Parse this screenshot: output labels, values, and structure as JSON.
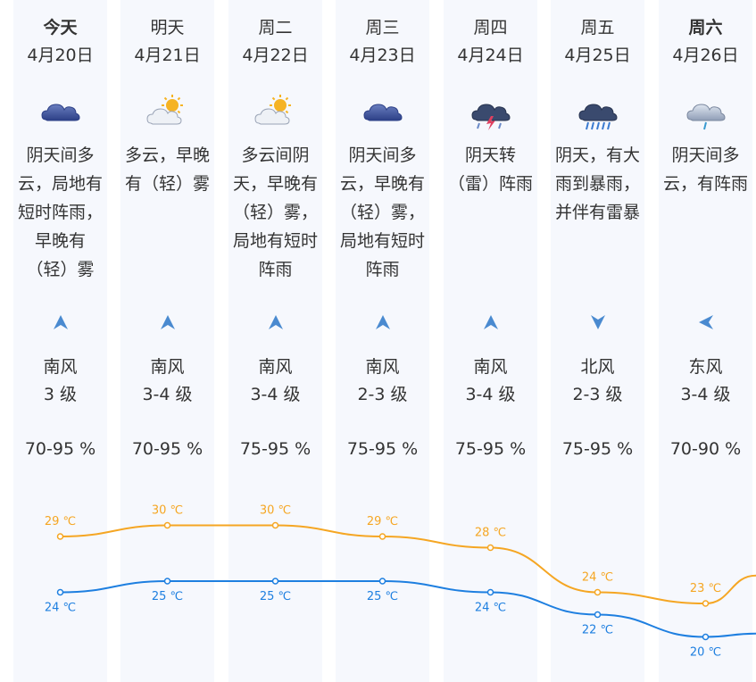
{
  "days": [
    {
      "day": "今天",
      "date": "4月20日",
      "bold": true,
      "icon": "overcast-cloud-icon",
      "desc": [
        "阴天间多",
        "云，局地有",
        "短时阵雨，",
        "早晚有",
        "（轻）雾"
      ],
      "wind_icon": "arrow-up-icon",
      "wind_dir": "南风",
      "wind_level": "3 级",
      "humidity": "70-95 %",
      "high": "29 ℃",
      "low": "24 ℃"
    },
    {
      "day": "明天",
      "date": "4月21日",
      "bold": false,
      "icon": "partly-cloudy-icon",
      "desc": [
        "多云，早晚",
        "有（轻）雾"
      ],
      "wind_icon": "arrow-up-icon",
      "wind_dir": "南风",
      "wind_level": "3-4 级",
      "humidity": "70-95 %",
      "high": "30 ℃",
      "low": "25 ℃"
    },
    {
      "day": "周二",
      "date": "4月22日",
      "bold": false,
      "icon": "partly-cloudy-icon",
      "desc": [
        "多云间阴",
        "天，早晚有",
        "（轻）雾，",
        "局地有短时",
        "阵雨"
      ],
      "wind_icon": "arrow-up-icon",
      "wind_dir": "南风",
      "wind_level": "3-4 级",
      "humidity": "75-95 %",
      "high": "30 ℃",
      "low": "25 ℃"
    },
    {
      "day": "周三",
      "date": "4月23日",
      "bold": false,
      "icon": "overcast-cloud-icon",
      "desc": [
        "阴天间多",
        "云，早晚有",
        "（轻）雾，",
        "局地有短时",
        "阵雨"
      ],
      "wind_icon": "arrow-up-icon",
      "wind_dir": "南风",
      "wind_level": "2-3 级",
      "humidity": "75-95 %",
      "high": "29 ℃",
      "low": "25 ℃"
    },
    {
      "day": "周四",
      "date": "4月24日",
      "bold": false,
      "icon": "thunderstorm-icon",
      "desc": [
        "阴天转",
        "（雷）阵雨"
      ],
      "wind_icon": "arrow-up-icon",
      "wind_dir": "南风",
      "wind_level": "3-4 级",
      "humidity": "75-95 %",
      "high": "28 ℃",
      "low": "24 ℃"
    },
    {
      "day": "周五",
      "date": "4月25日",
      "bold": false,
      "icon": "heavy-rain-icon",
      "desc": [
        "阴天，有大",
        "雨到暴雨，",
        "并伴有雷暴"
      ],
      "wind_icon": "arrow-down-icon",
      "wind_dir": "北风",
      "wind_level": "2-3 级",
      "humidity": "75-95 %",
      "high": "24 ℃",
      "low": "22 ℃"
    },
    {
      "day": "周六",
      "date": "4月26日",
      "bold": true,
      "icon": "shower-rain-icon",
      "desc": [
        "阴天间多",
        "云，有阵雨"
      ],
      "wind_icon": "arrow-left-icon",
      "wind_dir": "东风",
      "wind_level": "3-4 级",
      "humidity": "70-90 %",
      "high": "23 ℃",
      "low": "20 ℃"
    }
  ],
  "chart_data": {
    "type": "line",
    "categories": [
      "4月20日",
      "4月21日",
      "4月22日",
      "4月23日",
      "4月24日",
      "4月25日",
      "4月26日"
    ],
    "series": [
      {
        "values": [
          29,
          30,
          30,
          29,
          28,
          24,
          23
        ],
        "color": "#f5a623"
      },
      {
        "values": [
          24,
          25,
          25,
          25,
          24,
          22,
          20
        ],
        "color": "#1e7fe0"
      }
    ],
    "unit": "℃"
  },
  "colors": {
    "high_line": "#f5a623",
    "low_line": "#1e7fe0",
    "column_bg": "#f6f8fd",
    "arrow": "#4a8ad0"
  }
}
